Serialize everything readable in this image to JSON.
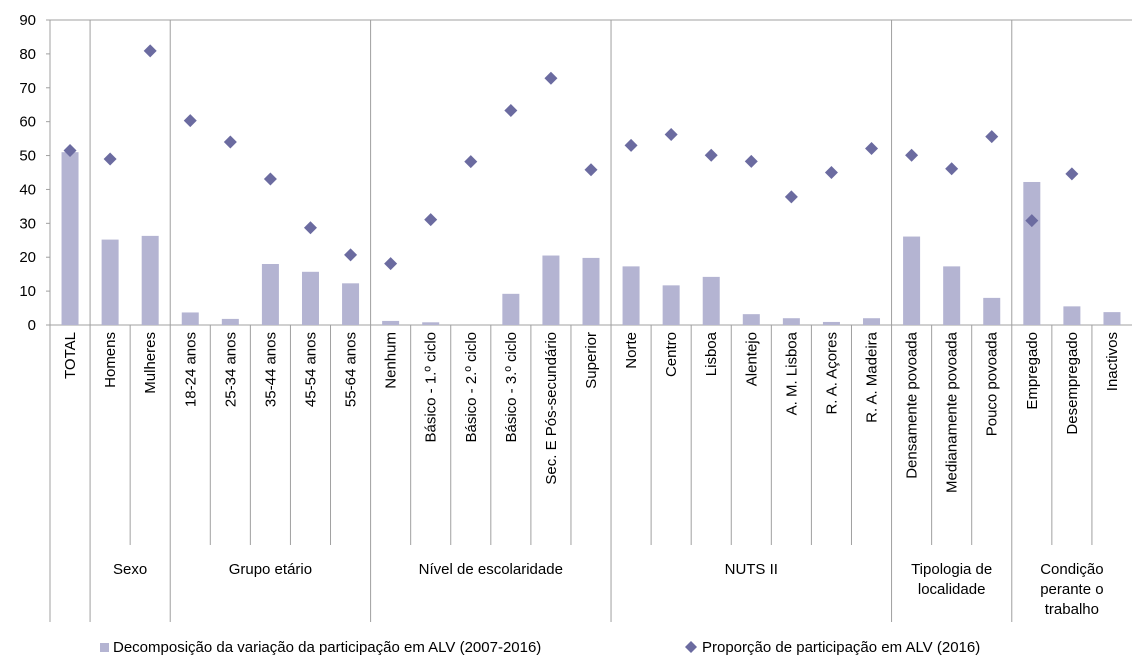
{
  "chart_data": {
    "type": "bar",
    "ylim": [
      0,
      90
    ],
    "yticks": [
      0,
      10,
      20,
      30,
      40,
      50,
      60,
      70,
      80,
      90
    ],
    "grid": false,
    "legend_position": "bottom",
    "categories": [
      "TOTAL",
      "Homens",
      "Mulheres",
      "18-24 anos",
      "25-34 anos",
      "35-44 anos",
      "45-54 anos",
      "55-64 anos",
      "Nenhum",
      "Básico - 1.º ciclo",
      "Básico - 2.º ciclo",
      "Básico - 3.º ciclo",
      "Sec. E Pós-secundário",
      "Superior",
      "Norte",
      "Centro",
      "Lisboa",
      "Alentejo",
      "A. M. Lisboa",
      "R. A. Açores",
      "R. A. Madeira",
      "Densamente povoada",
      "Medianamente povoada",
      "Pouco povoada",
      "Empregado",
      "Desempregado",
      "Inactivos"
    ],
    "groups": [
      {
        "label": [],
        "start": 0,
        "end": 0
      },
      {
        "label": [
          "Sexo"
        ],
        "start": 1,
        "end": 2
      },
      {
        "label": [
          "Grupo etário"
        ],
        "start": 3,
        "end": 7
      },
      {
        "label": [
          "Nível de escolaridade"
        ],
        "start": 8,
        "end": 13
      },
      {
        "label": [
          "NUTS II"
        ],
        "start": 14,
        "end": 20
      },
      {
        "label": [
          "Tipologia de",
          "localidade"
        ],
        "start": 21,
        "end": 23
      },
      {
        "label": [
          "Condição",
          "perante o",
          "trabalho"
        ],
        "start": 24,
        "end": 26
      }
    ],
    "series": [
      {
        "name": "Decomposição da variação da participação em ALV (2007-2016)",
        "type": "bar",
        "color": "#b4b4d2",
        "values": [
          51,
          25.2,
          26.3,
          3.7,
          1.8,
          18,
          15.7,
          12.3,
          1.2,
          0.8,
          0,
          9.2,
          20.5,
          19.8,
          17.3,
          11.7,
          14.2,
          3.2,
          2,
          0.9,
          2,
          26.1,
          17.3,
          8,
          42.2,
          5.5,
          3.8
        ]
      },
      {
        "name": "Proporção de participação em ALV (2016)",
        "type": "scatter",
        "marker": "diamond",
        "color": "#6b6ba0",
        "values": [
          51.5,
          49,
          80.9,
          60.3,
          54,
          43.1,
          28.7,
          20.7,
          18.1,
          31.1,
          48.2,
          63.3,
          72.8,
          45.8,
          53,
          56.2,
          50.1,
          48.3,
          37.8,
          45,
          52.1,
          50.1,
          46.1,
          55.6,
          30.8,
          44.6,
          null
        ]
      }
    ]
  }
}
